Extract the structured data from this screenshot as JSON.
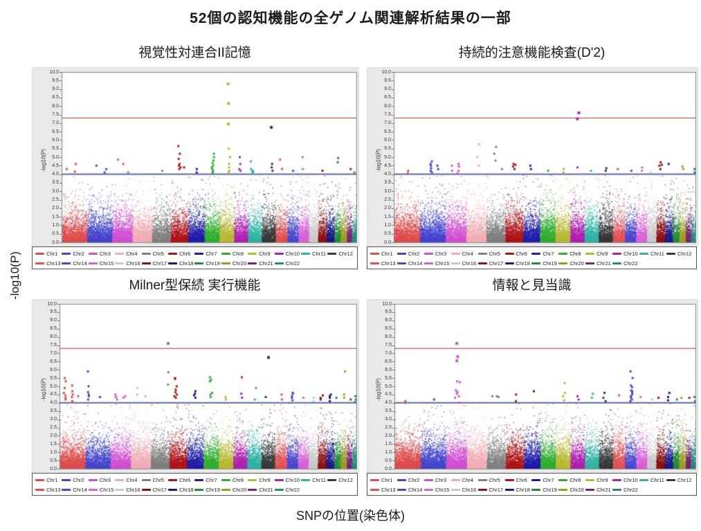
{
  "figure": {
    "title": "52個の認知機能の全ゲノム関連解析結果の一部",
    "xlabel": "SNPの位置(染色体)",
    "ylabel": "-log10(P)"
  },
  "axis": {
    "panel_ylabel": "-log10(P)",
    "ylim": [
      0,
      10
    ],
    "tick_step": 0.5,
    "ticks": [
      "0.0",
      "0.5",
      "1.0",
      "1.5",
      "2.0",
      "2.5",
      "3.0",
      "3.5",
      "4.0",
      "4.5",
      "5.0",
      "5.5",
      "6.0",
      "6.5",
      "7.0",
      "7.5",
      "8.0",
      "8.5",
      "9.0",
      "9.5",
      "10.0"
    ]
  },
  "chart_data": {
    "type": "manhattan",
    "ylabel": "-log10(P)",
    "xlabel": "SNP position (chromosome)",
    "ylim": [
      0,
      10
    ],
    "thresholds": {
      "genome_wide_line": 7.3,
      "suggestive_line": 4.0
    },
    "chromosomes": [
      {
        "name": "Chr1",
        "color": "#de4c4c",
        "length_mb": 249
      },
      {
        "name": "Chr2",
        "color": "#4345ce",
        "length_mb": 243
      },
      {
        "name": "Chr3",
        "color": "#d14fd1",
        "length_mb": 198
      },
      {
        "name": "Chr4",
        "color": "#f0adb5",
        "length_mb": 191
      },
      {
        "name": "Chr5",
        "color": "#7f7f7f",
        "length_mb": 181
      },
      {
        "name": "Chr6",
        "color": "#ae1417",
        "length_mb": 171
      },
      {
        "name": "Chr7",
        "color": "#1d1da8",
        "length_mb": 159
      },
      {
        "name": "Chr8",
        "color": "#2fae2f",
        "length_mb": 146
      },
      {
        "name": "Chr9",
        "color": "#b8b832",
        "length_mb": 141
      },
      {
        "name": "Chr10",
        "color": "#ae21ae",
        "length_mb": 136
      },
      {
        "name": "Chr11",
        "color": "#2eb3a4",
        "length_mb": 135
      },
      {
        "name": "Chr12",
        "color": "#383838",
        "length_mb": 134
      },
      {
        "name": "Chr13",
        "color": "#e05252",
        "length_mb": 115
      },
      {
        "name": "Chr14",
        "color": "#4848d0",
        "length_mb": 107
      },
      {
        "name": "Chr15",
        "color": "#d860d8",
        "length_mb": 102
      },
      {
        "name": "Chr16",
        "color": "#c9c9c9",
        "length_mb": 90
      },
      {
        "name": "Chr17",
        "color": "#8e1212",
        "length_mb": 81
      },
      {
        "name": "Chr18",
        "color": "#191989",
        "length_mb": 78
      },
      {
        "name": "Chr19",
        "color": "#1e8e38",
        "length_mb": 59
      },
      {
        "name": "Chr20",
        "color": "#9c9c21",
        "length_mb": 63
      },
      {
        "name": "Chr21",
        "color": "#7c1f7c",
        "length_mb": 48
      },
      {
        "name": "Chr22",
        "color": "#1f8e7c",
        "length_mb": 51
      }
    ],
    "panels": [
      {
        "title": "視覚性対連合II記憶",
        "hits": [
          {
            "chr": "Chr1",
            "pos": 0.25,
            "values": [
              4.3
            ]
          },
          {
            "chr": "Chr1",
            "pos": 0.55,
            "values": [
              4.6,
              4.15
            ]
          },
          {
            "chr": "Chr2",
            "pos": 0.4,
            "values": [
              4.5
            ]
          },
          {
            "chr": "Chr2",
            "pos": 0.75,
            "values": [
              4.3,
              4.1
            ]
          },
          {
            "chr": "Chr3",
            "pos": 0.3,
            "values": [
              4.85
            ]
          },
          {
            "chr": "Chr3",
            "pos": 0.6,
            "values": [
              4.6
            ]
          },
          {
            "chr": "Chr3",
            "pos": 0.85,
            "values": [
              4.1
            ]
          },
          {
            "chr": "Chr5",
            "pos": 0.5,
            "values": [
              4.2
            ]
          },
          {
            "chr": "Chr6",
            "pos": 0.5,
            "values": [
              5.65,
              5.2,
              4.9,
              4.6,
              4.5,
              4.4,
              4.3
            ]
          },
          {
            "chr": "Chr6",
            "pos": 0.8,
            "values": [
              4.4
            ]
          },
          {
            "chr": "Chr7",
            "pos": 0.5,
            "values": [
              4.3,
              4.1
            ]
          },
          {
            "chr": "Chr8",
            "pos": 0.55,
            "values": [
              5.2,
              5.0,
              4.8,
              4.65,
              4.5,
              4.4,
              4.3,
              4.2,
              4.1,
              4.05
            ]
          },
          {
            "chr": "Chr9",
            "pos": 0.68,
            "values": [
              9.3,
              8.15,
              6.95,
              5.5,
              5.0,
              4.6,
              4.4,
              4.2,
              4.1
            ]
          },
          {
            "chr": "Chr10",
            "pos": 0.45,
            "values": [
              5.0,
              4.6,
              4.3,
              4.2
            ]
          },
          {
            "chr": "Chr11",
            "pos": 0.3,
            "values": [
              4.75,
              4.3,
              4.2,
              4.15,
              4.1
            ]
          },
          {
            "chr": "Chr12",
            "pos": 0.75,
            "values": [
              6.75,
              4.6,
              4.4,
              4.2
            ]
          },
          {
            "chr": "Chr13",
            "pos": 0.5,
            "values": [
              4.85,
              4.3
            ]
          },
          {
            "chr": "Chr14",
            "pos": 0.4,
            "values": [
              4.2
            ]
          },
          {
            "chr": "Chr15",
            "pos": 0.5,
            "values": [
              5.0,
              4.3
            ]
          },
          {
            "chr": "Chr17",
            "pos": 0.4,
            "values": [
              4.2
            ]
          },
          {
            "chr": "Chr19",
            "pos": 0.5,
            "values": [
              4.95,
              4.7
            ]
          },
          {
            "chr": "Chr21",
            "pos": 0.5,
            "values": [
              4.3
            ]
          },
          {
            "chr": "Chr22",
            "pos": 0.5,
            "values": [
              4.1
            ]
          }
        ]
      },
      {
        "title": "持続的注意機能検査(D'2)",
        "hits": [
          {
            "chr": "Chr1",
            "pos": 0.5,
            "values": [
              4.2,
              4.05
            ]
          },
          {
            "chr": "Chr2",
            "pos": 0.45,
            "values": [
              4.75,
              4.6,
              4.5,
              4.35,
              4.2,
              4.1
            ]
          },
          {
            "chr": "Chr2",
            "pos": 0.7,
            "values": [
              4.5,
              4.3
            ]
          },
          {
            "chr": "Chr3",
            "pos": 0.35,
            "values": [
              4.5,
              4.2
            ]
          },
          {
            "chr": "Chr3",
            "pos": 0.6,
            "values": [
              4.6,
              4.45,
              4.2,
              4.05
            ]
          },
          {
            "chr": "Chr4",
            "pos": 0.6,
            "values": [
              5.75,
              5.0,
              4.5
            ]
          },
          {
            "chr": "Chr5",
            "pos": 0.45,
            "values": [
              5.6,
              5.2,
              4.8
            ]
          },
          {
            "chr": "Chr5",
            "pos": 0.8,
            "values": [
              4.3
            ]
          },
          {
            "chr": "Chr6",
            "pos": 0.5,
            "values": [
              4.6,
              4.55,
              4.45,
              4.3
            ]
          },
          {
            "chr": "Chr7",
            "pos": 0.4,
            "values": [
              4.5,
              4.3
            ]
          },
          {
            "chr": "Chr8",
            "pos": 0.5,
            "values": [
              4.2
            ]
          },
          {
            "chr": "Chr9",
            "pos": 0.5,
            "values": [
              4.3,
              4.1
            ]
          },
          {
            "chr": "Chr10",
            "pos": 0.55,
            "values": [
              7.6,
              7.25,
              4.4
            ]
          },
          {
            "chr": "Chr11",
            "pos": 0.5,
            "values": [
              4.2
            ]
          },
          {
            "chr": "Chr12",
            "pos": 0.5,
            "values": [
              4.35,
              4.2
            ]
          },
          {
            "chr": "Chr13",
            "pos": 0.5,
            "values": [
              4.3
            ]
          },
          {
            "chr": "Chr14",
            "pos": 0.5,
            "values": [
              4.2
            ]
          },
          {
            "chr": "Chr15",
            "pos": 0.5,
            "values": [
              4.4,
              4.2
            ]
          },
          {
            "chr": "Chr16",
            "pos": 0.5,
            "values": [
              4.1
            ]
          },
          {
            "chr": "Chr17",
            "pos": 0.5,
            "values": [
              4.7,
              4.55,
              4.5,
              4.3
            ]
          },
          {
            "chr": "Chr18",
            "pos": 0.5,
            "values": [
              4.6
            ]
          },
          {
            "chr": "Chr20",
            "pos": 0.5,
            "values": [
              4.45,
              4.3
            ]
          },
          {
            "chr": "Chr22",
            "pos": 0.5,
            "values": [
              4.3,
              4.1
            ]
          }
        ]
      },
      {
        "title": "Milner型保続 実行機能",
        "hits": [
          {
            "chr": "Chr1",
            "pos": 0.2,
            "values": [
              5.5,
              5.3,
              4.9,
              4.6,
              4.45,
              4.3,
              4.2
            ]
          },
          {
            "chr": "Chr1",
            "pos": 0.5,
            "values": [
              5.05,
              4.7,
              4.5,
              4.35,
              4.1
            ]
          },
          {
            "chr": "Chr1",
            "pos": 0.75,
            "values": [
              4.4
            ]
          },
          {
            "chr": "Chr2",
            "pos": 0.15,
            "values": [
              5.9,
              5.0,
              4.65,
              4.5,
              4.4,
              4.2
            ]
          },
          {
            "chr": "Chr2",
            "pos": 0.6,
            "values": [
              4.35
            ]
          },
          {
            "chr": "Chr3",
            "pos": 0.3,
            "values": [
              4.5,
              4.35,
              4.2
            ]
          },
          {
            "chr": "Chr3",
            "pos": 0.7,
            "values": [
              4.4,
              4.3
            ]
          },
          {
            "chr": "Chr4",
            "pos": 0.3,
            "values": [
              4.9,
              4.5
            ]
          },
          {
            "chr": "Chr4",
            "pos": 0.7,
            "values": [
              4.4
            ]
          },
          {
            "chr": "Chr5",
            "pos": 0.9,
            "values": [
              7.6,
              5.85,
              5.1
            ]
          },
          {
            "chr": "Chr6",
            "pos": 0.35,
            "values": [
              5.5,
              5.45,
              5.0,
              4.8,
              4.65,
              4.5,
              4.4,
              4.3
            ]
          },
          {
            "chr": "Chr7",
            "pos": 0.45,
            "values": [
              4.7,
              4.55,
              4.45,
              4.3
            ]
          },
          {
            "chr": "Chr8",
            "pos": 0.5,
            "values": [
              5.55,
              5.4,
              5.3,
              4.6,
              4.5,
              4.35
            ]
          },
          {
            "chr": "Chr9",
            "pos": 0.5,
            "values": [
              4.35,
              4.2
            ]
          },
          {
            "chr": "Chr10",
            "pos": 0.6,
            "values": [
              5.55,
              4.55,
              4.3
            ]
          },
          {
            "chr": "Chr11",
            "pos": 0.55,
            "values": [
              4.9,
              4.2
            ]
          },
          {
            "chr": "Chr12",
            "pos": 0.6,
            "values": [
              6.75
            ]
          },
          {
            "chr": "Chr12",
            "pos": 0.3,
            "values": [
              4.35
            ]
          },
          {
            "chr": "Chr13",
            "pos": 0.5,
            "values": [
              4.5,
              4.2
            ]
          },
          {
            "chr": "Chr14",
            "pos": 0.5,
            "values": [
              4.6,
              4.55,
              4.4,
              4.3,
              4.15
            ]
          },
          {
            "chr": "Chr15",
            "pos": 0.5,
            "values": [
              4.3
            ]
          },
          {
            "chr": "Chr16",
            "pos": 0.5,
            "values": [
              4.3,
              4.1
            ]
          },
          {
            "chr": "Chr17",
            "pos": 0.5,
            "values": [
              4.45,
              4.3,
              4.2
            ]
          },
          {
            "chr": "Chr18",
            "pos": 0.5,
            "values": [
              4.5,
              4.4,
              4.3,
              4.1
            ]
          },
          {
            "chr": "Chr19",
            "pos": 0.5,
            "values": [
              4.3
            ]
          },
          {
            "chr": "Chr20",
            "pos": 0.6,
            "values": [
              5.9,
              4.5,
              4.3
            ]
          },
          {
            "chr": "Chr21",
            "pos": 0.5,
            "values": [
              4.2
            ]
          },
          {
            "chr": "Chr22",
            "pos": 0.5,
            "values": [
              4.4,
              4.2,
              4.05
            ]
          }
        ]
      },
      {
        "title": "情報と見当識",
        "hits": [
          {
            "chr": "Chr1",
            "pos": 0.4,
            "values": [
              4.1
            ]
          },
          {
            "chr": "Chr2",
            "pos": 0.5,
            "values": [
              4.2
            ]
          },
          {
            "chr": "Chr3",
            "pos": 0.5,
            "values": [
              7.6,
              6.8,
              6.55,
              5.3,
              4.75,
              4.65,
              4.55,
              4.3
            ]
          },
          {
            "chr": "Chr3",
            "pos": 0.65,
            "values": [
              5.25,
              4.4,
              4.0
            ]
          },
          {
            "chr": "Chr5",
            "pos": 0.3,
            "values": [
              4.4
            ]
          },
          {
            "chr": "Chr5",
            "pos": 0.6,
            "values": [
              4.4,
              4.35
            ]
          },
          {
            "chr": "Chr6",
            "pos": 0.5,
            "values": [
              4.5,
              4.1
            ]
          },
          {
            "chr": "Chr7",
            "pos": 0.6,
            "values": [
              4.7
            ]
          },
          {
            "chr": "Chr9",
            "pos": 0.55,
            "values": [
              5.2,
              4.6,
              4.4,
              4.15
            ]
          },
          {
            "chr": "Chr10",
            "pos": 0.5,
            "values": [
              4.4,
              4.2
            ]
          },
          {
            "chr": "Chr11",
            "pos": 0.5,
            "values": [
              4.55,
              4.3
            ]
          },
          {
            "chr": "Chr12",
            "pos": 0.4,
            "values": [
              4.6,
              4.3,
              4.1
            ]
          },
          {
            "chr": "Chr13",
            "pos": 0.5,
            "values": [
              4.45
            ]
          },
          {
            "chr": "Chr14",
            "pos": 0.6,
            "values": [
              5.9,
              5.5,
              5.05,
              4.95,
              4.75,
              4.7,
              4.6,
              4.5,
              4.4,
              4.3,
              4.2,
              4.1
            ]
          },
          {
            "chr": "Chr15",
            "pos": 0.5,
            "values": [
              4.35
            ]
          },
          {
            "chr": "Chr16",
            "pos": 0.5,
            "values": [
              4.2
            ]
          },
          {
            "chr": "Chr17",
            "pos": 0.4,
            "values": [
              4.3
            ]
          },
          {
            "chr": "Chr18",
            "pos": 0.5,
            "values": [
              4.6,
              4.35,
              4.15
            ]
          },
          {
            "chr": "Chr19",
            "pos": 0.5,
            "values": [
              4.2
            ]
          },
          {
            "chr": "Chr20",
            "pos": 0.5,
            "values": [
              4.3
            ]
          },
          {
            "chr": "Chr21",
            "pos": 0.5,
            "values": [
              4.3
            ]
          },
          {
            "chr": "Chr22",
            "pos": 0.6,
            "values": [
              4.35,
              4.1
            ]
          }
        ]
      }
    ]
  },
  "style": {
    "panel_bg": "#e9e9e9",
    "plot_bg": "#ffffff",
    "frame": "#8a8a8a",
    "genome_wide_line_color": "#b5413c",
    "suggestive_line_color": "#5b69ae",
    "legend_border": "#555555"
  }
}
